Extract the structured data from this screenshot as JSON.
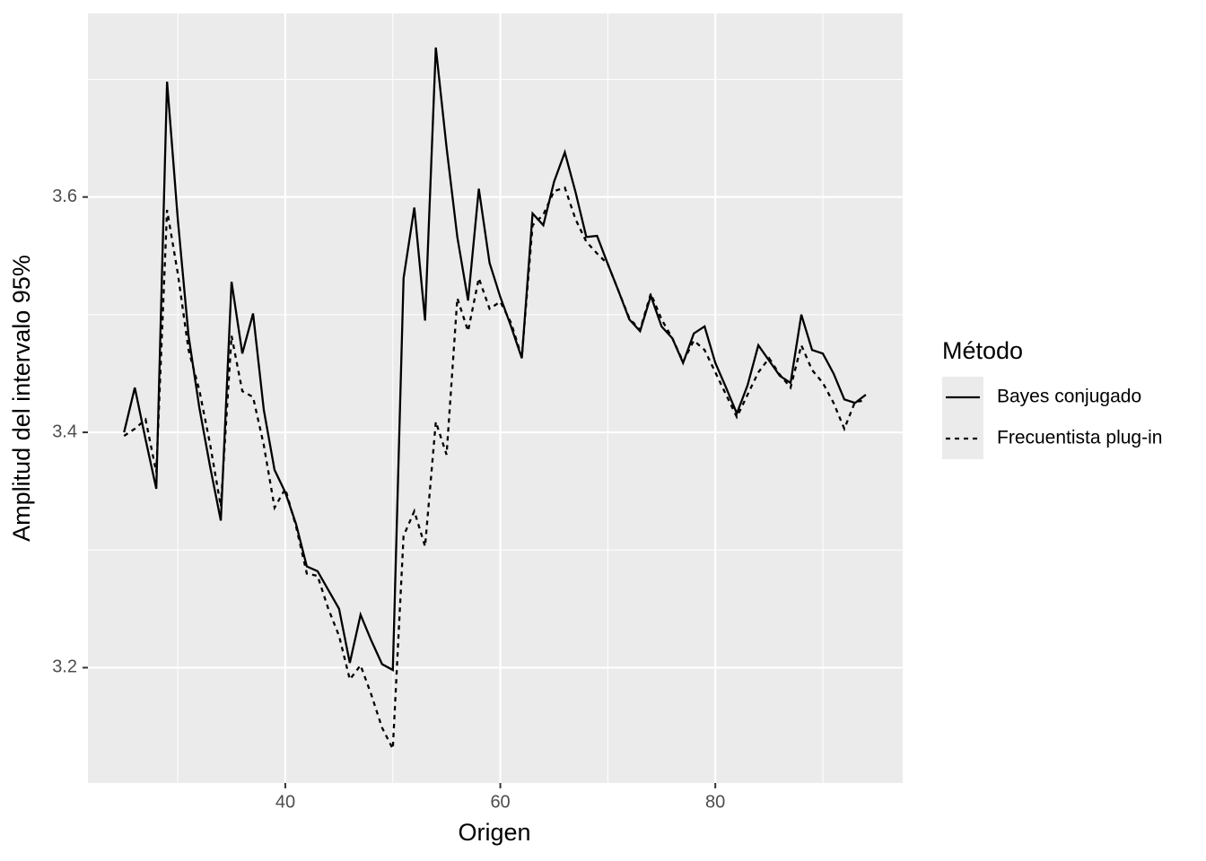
{
  "chart_data": {
    "type": "line",
    "x_label": "Origen",
    "y_label": "Amplitud del intervalo 95%",
    "legend_title": "Método",
    "legend": "right",
    "x": [
      25,
      26,
      27,
      28,
      29,
      30,
      31,
      32,
      33,
      34,
      35,
      36,
      37,
      38,
      39,
      40,
      41,
      42,
      43,
      44,
      45,
      46,
      47,
      48,
      49,
      50,
      51,
      52,
      53,
      54,
      55,
      56,
      57,
      58,
      59,
      60,
      61,
      62,
      63,
      64,
      65,
      66,
      67,
      68,
      69,
      70,
      71,
      72,
      73,
      74,
      75,
      76,
      77,
      78,
      79,
      80,
      81,
      82,
      83,
      84,
      85,
      86,
      87,
      88,
      89,
      90,
      91,
      92,
      93,
      94
    ],
    "series": [
      {
        "name": "Bayes conjugado",
        "color": "#000000",
        "dash": "solid",
        "values": [
          3.4,
          3.438,
          3.394,
          3.352,
          3.698,
          3.581,
          3.482,
          3.421,
          3.371,
          3.325,
          3.528,
          3.467,
          3.501,
          3.419,
          3.368,
          3.349,
          3.322,
          3.286,
          3.282,
          3.266,
          3.25,
          3.204,
          3.245,
          3.223,
          3.203,
          3.198,
          3.531,
          3.591,
          3.495,
          3.727,
          3.642,
          3.566,
          3.512,
          3.607,
          3.544,
          3.515,
          3.49,
          3.463,
          3.586,
          3.576,
          3.613,
          3.638,
          3.604,
          3.566,
          3.567,
          3.543,
          3.52,
          3.496,
          3.486,
          3.516,
          3.49,
          3.48,
          3.459,
          3.484,
          3.49,
          3.459,
          3.438,
          3.416,
          3.44,
          3.474,
          3.461,
          3.448,
          3.442,
          3.5,
          3.47,
          3.467,
          3.45,
          3.428,
          3.425,
          3.432
        ]
      },
      {
        "name": "Frecuentista plug-in",
        "color": "#000000",
        "dash": "dotted",
        "values": [
          3.397,
          3.403,
          3.411,
          3.366,
          3.589,
          3.535,
          3.47,
          3.436,
          3.39,
          3.337,
          3.482,
          3.435,
          3.43,
          3.389,
          3.336,
          3.352,
          3.32,
          3.28,
          3.278,
          3.25,
          3.227,
          3.19,
          3.202,
          3.177,
          3.149,
          3.131,
          3.312,
          3.333,
          3.303,
          3.409,
          3.381,
          3.514,
          3.486,
          3.531,
          3.505,
          3.511,
          3.493,
          3.464,
          3.576,
          3.585,
          3.605,
          3.608,
          3.581,
          3.562,
          3.552,
          3.543,
          3.52,
          3.497,
          3.487,
          3.518,
          3.496,
          3.48,
          3.46,
          3.478,
          3.47,
          3.451,
          3.432,
          3.413,
          3.432,
          3.451,
          3.463,
          3.449,
          3.438,
          3.474,
          3.453,
          3.442,
          3.425,
          3.403,
          3.426,
          3.427
        ]
      }
    ],
    "xlim": [
      21.64,
      97.43
    ],
    "xticks": [
      40,
      60,
      80
    ],
    "x_minor_grid": [
      30,
      50,
      70,
      90
    ],
    "ylim": [
      3.102,
      3.756
    ],
    "yticks": [
      3.2,
      3.4,
      3.6
    ],
    "y_minor_grid": [
      3.3,
      3.5,
      3.7
    ],
    "grid": true
  }
}
